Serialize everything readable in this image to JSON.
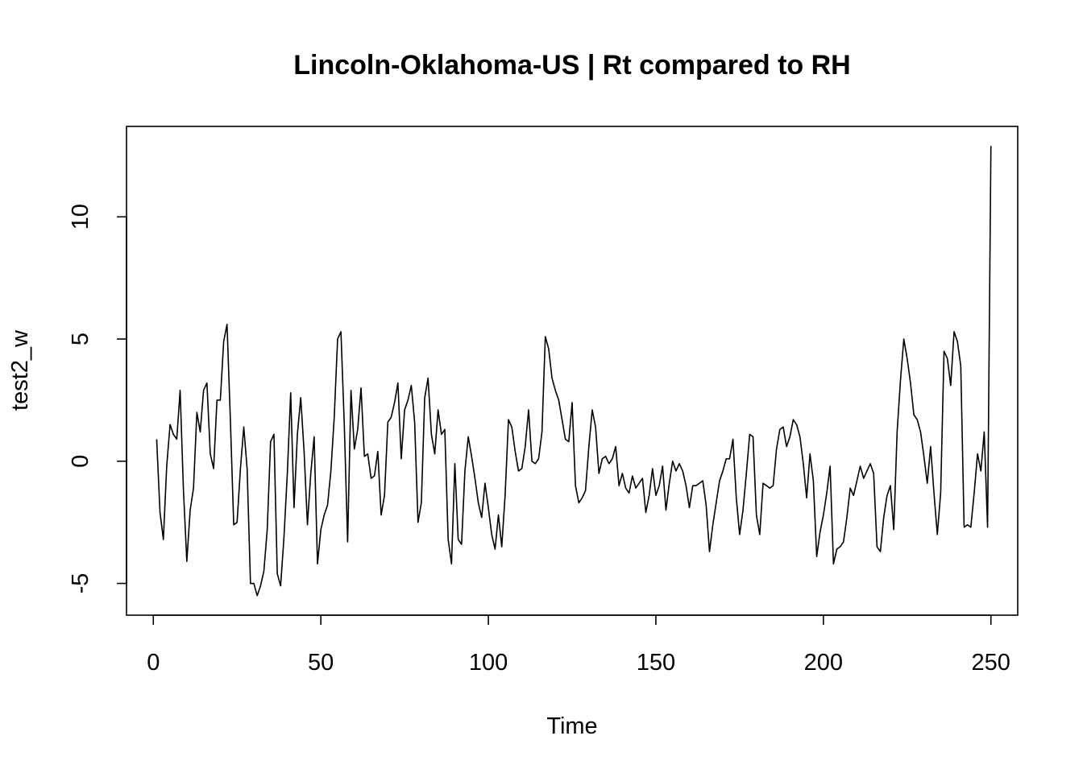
{
  "chart_data": {
    "type": "line",
    "title": "Lincoln-Oklahoma-US | Rt compared to RH",
    "xlabel": "Time",
    "ylabel": "test2_w",
    "xlim": [
      -8,
      258
    ],
    "ylim": [
      -6.3,
      13.7
    ],
    "xticks": [
      0,
      50,
      100,
      150,
      200,
      250
    ],
    "yticks": [
      -5,
      0,
      5,
      10
    ],
    "grid": false,
    "series": [
      {
        "x_start": 1,
        "values": [
          0.9,
          -2.1,
          -3.2,
          -0.2,
          1.5,
          1.1,
          0.9,
          2.9,
          -1.2,
          -4.1,
          -2.0,
          -1.1,
          2.0,
          1.2,
          2.9,
          3.2,
          0.3,
          -0.3,
          2.5,
          2.5,
          4.9,
          5.6,
          1.7,
          -2.6,
          -2.5,
          -0.3,
          1.4,
          -0.3,
          -5.0,
          -5.0,
          -5.5,
          -5.1,
          -4.5,
          -2.8,
          0.8,
          1.1,
          -4.6,
          -5.1,
          -3.1,
          -0.5,
          2.8,
          -1.9,
          1.1,
          2.6,
          0.4,
          -2.6,
          -0.5,
          1.0,
          -4.2,
          -2.8,
          -2.2,
          -1.8,
          -0.4,
          1.8,
          5.0,
          5.3,
          1.5,
          -3.3,
          2.9,
          0.5,
          1.3,
          3.0,
          0.2,
          0.3,
          -0.7,
          -0.6,
          0.4,
          -2.2,
          -1.4,
          1.6,
          1.8,
          2.4,
          3.2,
          0.1,
          2.1,
          2.5,
          3.1,
          1.6,
          -2.5,
          -1.7,
          2.6,
          3.4,
          1.1,
          0.3,
          2.1,
          1.1,
          1.3,
          -3.2,
          -4.2,
          -0.1,
          -3.2,
          -3.4,
          -0.4,
          1.0,
          0.2,
          -0.7,
          -1.7,
          -2.3,
          -0.9,
          -1.9,
          -3.0,
          -3.6,
          -2.2,
          -3.5,
          -1.4,
          1.7,
          1.4,
          0.4,
          -0.4,
          -0.3,
          0.6,
          2.1,
          0.0,
          -0.1,
          0.1,
          1.2,
          5.1,
          4.6,
          3.4,
          2.9,
          2.5,
          1.7,
          0.9,
          0.8,
          2.4,
          -1.0,
          -1.7,
          -1.5,
          -1.2,
          0.6,
          2.1,
          1.4,
          -0.5,
          0.1,
          0.2,
          -0.1,
          0.1,
          0.6,
          -1.0,
          -0.5,
          -1.1,
          -1.3,
          -0.6,
          -1.1,
          -0.9,
          -0.7,
          -2.1,
          -1.4,
          -0.3,
          -1.4,
          -1.0,
          -0.2,
          -2.0,
          -0.9,
          0.0,
          -0.4,
          -0.1,
          -0.4,
          -1.0,
          -1.9,
          -1.0,
          -1.0,
          -0.9,
          -0.8,
          -1.8,
          -3.7,
          -2.6,
          -1.7,
          -0.8,
          -0.4,
          0.1,
          0.1,
          0.9,
          -1.5,
          -3.0,
          -2.0,
          -0.5,
          1.1,
          1.0,
          -2.2,
          -3.0,
          -0.9,
          -1.0,
          -1.1,
          -1.0,
          0.5,
          1.3,
          1.4,
          0.6,
          1.0,
          1.7,
          1.5,
          1.0,
          -0.1,
          -1.5,
          0.3,
          -0.8,
          -3.9,
          -2.9,
          -2.2,
          -1.3,
          -0.2,
          -4.2,
          -3.6,
          -3.5,
          -3.3,
          -2.3,
          -1.1,
          -1.4,
          -0.8,
          -0.2,
          -0.7,
          -0.4,
          -0.1,
          -0.5,
          -3.5,
          -3.7,
          -2.3,
          -1.4,
          -1.0,
          -2.8,
          1.2,
          3.3,
          5.0,
          4.2,
          3.2,
          1.9,
          1.7,
          1.2,
          0.2,
          -0.9,
          0.6,
          -1.3,
          -3.0,
          -1.3,
          4.5,
          4.2,
          3.1,
          5.3,
          4.9,
          3.9,
          -2.7,
          -2.6,
          -2.7,
          -1.3,
          0.3,
          -0.4,
          1.2,
          -2.7,
          12.9
        ]
      }
    ]
  }
}
